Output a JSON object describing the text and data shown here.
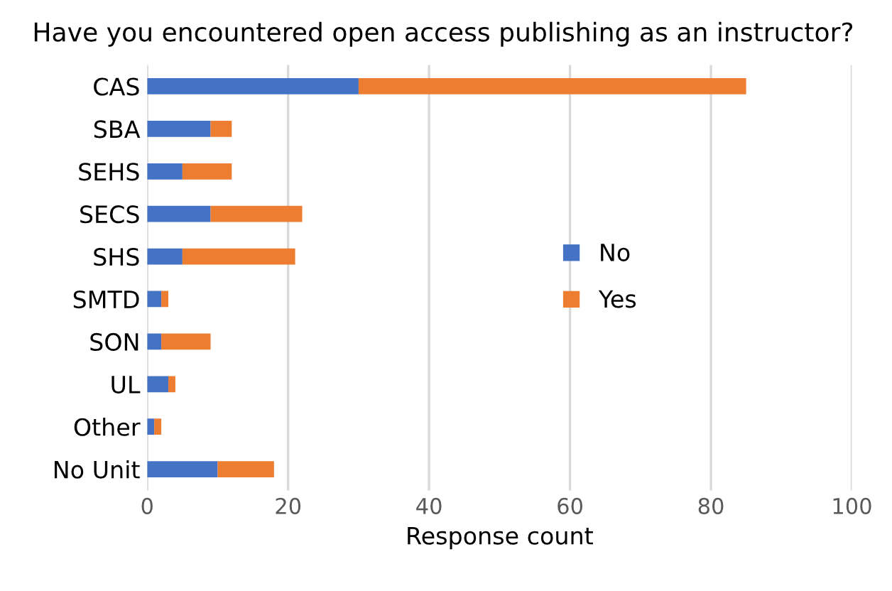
{
  "chart_data": {
    "type": "bar",
    "orientation": "horizontal",
    "stacked": true,
    "title": "Have you encountered open access publishing as an instructor?",
    "xlabel": "Response count",
    "categories": [
      "CAS",
      "SBA",
      "SEHS",
      "SECS",
      "SHS",
      "SMTD",
      "SON",
      "UL",
      "Other",
      "No Unit"
    ],
    "series": [
      {
        "name": "No",
        "color": "#4472c4",
        "values": [
          30,
          9,
          5,
          9,
          5,
          2,
          2,
          3,
          1,
          10
        ]
      },
      {
        "name": "Yes",
        "color": "#ed7d31",
        "values": [
          55,
          3,
          7,
          13,
          16,
          1,
          7,
          1,
          1,
          8
        ]
      }
    ],
    "xlim": [
      0,
      100
    ],
    "xticks": [
      0,
      20,
      40,
      60,
      80,
      100
    ],
    "grid": "x",
    "legend": "center right"
  }
}
